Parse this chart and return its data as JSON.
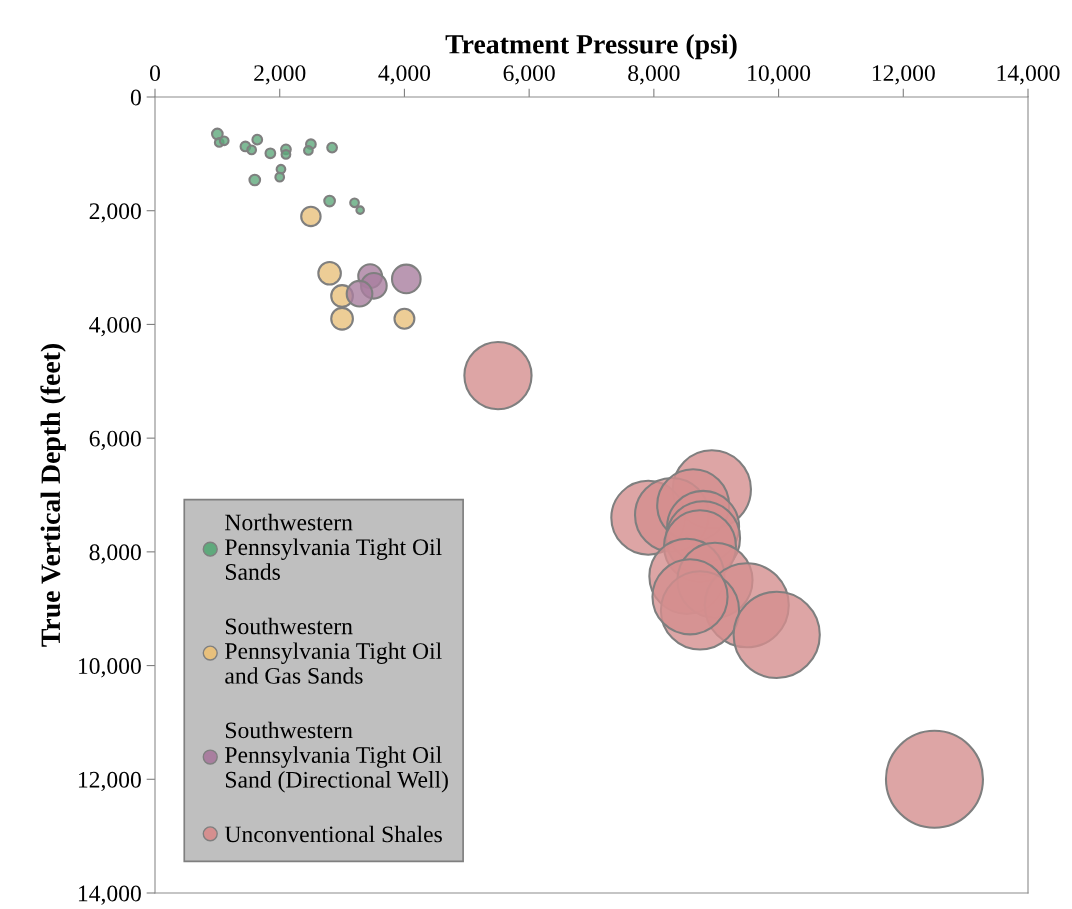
{
  "chart_data": {
    "type": "bubble",
    "xlabel": "Treatment Pressure (psi)",
    "ylabel": "True Vertical Depth (feet)",
    "xlim": [
      0,
      14000
    ],
    "ylim": [
      14000,
      0
    ],
    "xticks": [
      0,
      {
        "value": 2000,
        "label": "2,000"
      },
      {
        "value": 4000,
        "label": "4,000"
      },
      {
        "value": 6000,
        "label": "6,000"
      },
      {
        "value": 8000,
        "label": "8,000"
      },
      {
        "value": 10000,
        "label": "10,000"
      },
      {
        "value": 12000,
        "label": "12,000"
      },
      {
        "value": 14000,
        "label": "14,000"
      }
    ],
    "yticks": [
      0,
      {
        "value": 2000,
        "label": "2,000"
      },
      {
        "value": 4000,
        "label": "4,000"
      },
      {
        "value": 6000,
        "label": "6,000"
      },
      {
        "value": 8000,
        "label": "8,000"
      },
      {
        "value": 10000,
        "label": "10,000"
      },
      {
        "value": 12000,
        "label": "12,000"
      },
      {
        "value": 14000,
        "label": "14,000"
      }
    ],
    "grid": false,
    "legend": "bottom left",
    "series": [
      {
        "name": "Northwestern Pennsylvania Tight Oil Sands",
        "color": "#5fa97c",
        "x": [
          1000,
          1030,
          1110,
          1450,
          1550,
          1640,
          1850,
          2100,
          2100,
          2500,
          2460,
          2840,
          2020,
          2000,
          1600,
          2800,
          3200,
          3290
        ],
        "values": [
          650,
          800,
          770,
          870,
          930,
          750,
          990,
          920,
          1010,
          830,
          940,
          890,
          1270,
          1410,
          1460,
          1830,
          1860,
          1990
        ],
        "sizes": [
          0.012,
          0.008,
          0.008,
          0.01,
          0.008,
          0.01,
          0.01,
          0.01,
          0.008,
          0.01,
          0.008,
          0.01,
          0.008,
          0.008,
          0.012,
          0.012,
          0.008,
          0.006
        ]
      },
      {
        "name": "Southwestern Pennsylvania Tight Oil and Gas Sands",
        "color": "#e8c07c",
        "x": [
          2500,
          2800,
          3000,
          3000,
          4000
        ],
        "values": [
          2100,
          3100,
          3500,
          3900,
          3900
        ],
        "sizes": [
          0.04,
          0.054,
          0.05,
          0.05,
          0.042
        ]
      },
      {
        "name": "Southwestern Pennsylvania Tight Oil Sand (Directional Well)",
        "color": "#a97e9f",
        "x": [
          4030,
          3450,
          3510,
          3280
        ],
        "values": [
          3200,
          3150,
          3320,
          3460
        ],
        "sizes": [
          0.087,
          0.06,
          0.07,
          0.07
        ]
      },
      {
        "name": "Unconventional Shales",
        "color": "#d58f8f",
        "x": [
          5500,
          8930,
          7910,
          8290,
          8630,
          8790,
          8790,
          8740,
          8530,
          8980,
          9490,
          8740,
          9970,
          8580,
          12500
        ],
        "values": [
          4900,
          6900,
          7400,
          7350,
          7180,
          7560,
          7760,
          7900,
          8430,
          8500,
          8940,
          9030,
          9460,
          8790,
          12000
        ],
        "sizes": [
          0.48,
          0.65,
          0.58,
          0.58,
          0.55,
          0.55,
          0.58,
          0.55,
          0.6,
          0.6,
          0.75,
          0.65,
          0.79,
          0.6,
          1.0
        ]
      }
    ]
  }
}
